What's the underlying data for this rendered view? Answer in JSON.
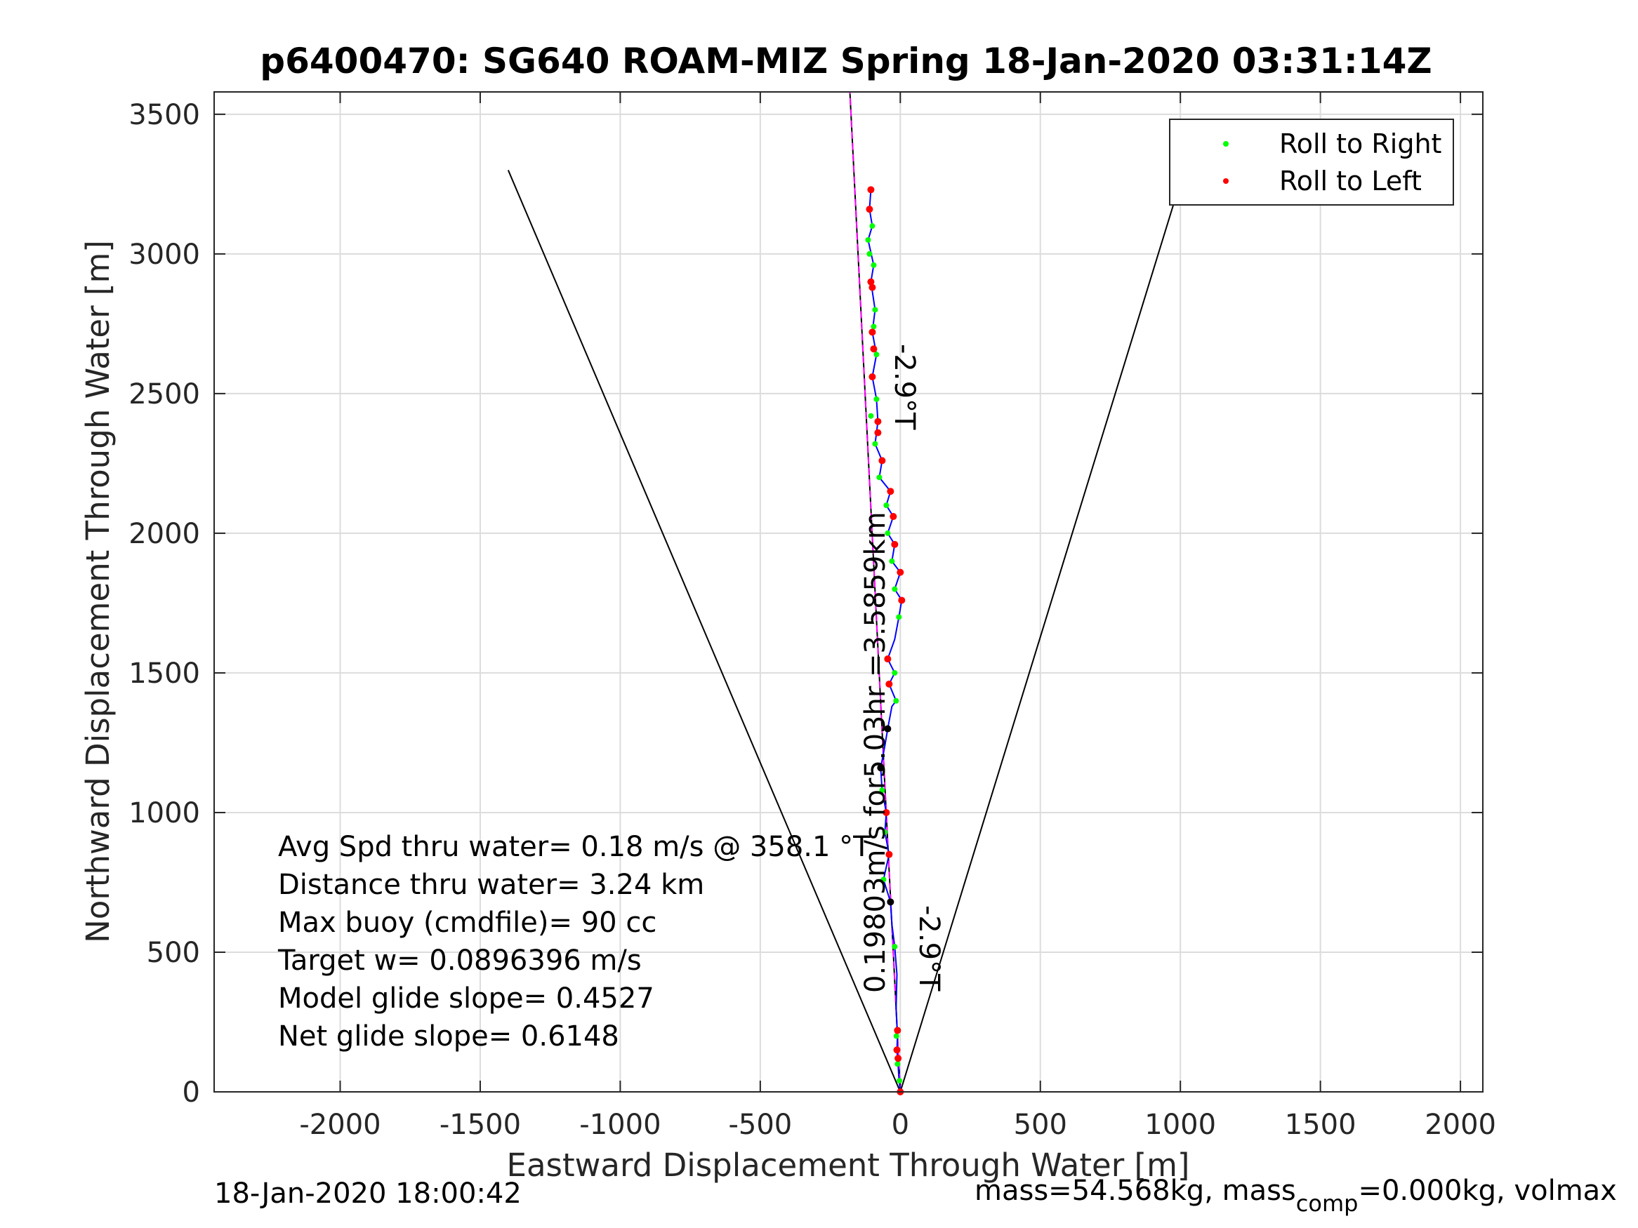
{
  "chart_data": {
    "type": "scatter",
    "title": "p6400470: SG640 ROAM-MIZ Spring 18-Jan-2020 03:31:14Z",
    "xlabel": "Eastward Displacement Through Water [m]",
    "ylabel": "Northward Displacement Through Water [m]",
    "xlim": [
      -2450,
      2080
    ],
    "ylim": [
      0,
      3580
    ],
    "xticks": [
      -2000,
      -1500,
      -1000,
      -500,
      0,
      500,
      1000,
      1500,
      2000
    ],
    "yticks": [
      0,
      500,
      1000,
      1500,
      2000,
      2500,
      3000,
      3500
    ],
    "grid": true,
    "legend_position": "top-right",
    "legend": [
      "Roll to Right",
      "Roll to Left"
    ],
    "colors": {
      "roll_right": "#00ff00",
      "roll_left": "#ff0000",
      "track": "#0000ff",
      "heading_line": "#ff00ff",
      "guide": "#000000"
    },
    "cone_lines": [
      {
        "name": "left",
        "points": [
          [
            0,
            0
          ],
          [
            -1400,
            3300
          ]
        ]
      },
      {
        "name": "right",
        "points": [
          [
            0,
            0
          ],
          [
            1050,
            3420
          ]
        ]
      }
    ],
    "course_line": [
      [
        0,
        0
      ],
      [
        -180,
        3580
      ]
    ],
    "heading_line": [
      [
        0,
        0
      ],
      [
        -180,
        3580
      ]
    ],
    "track": [
      [
        0,
        0
      ],
      [
        -5,
        50
      ],
      [
        -8,
        100
      ],
      [
        -12,
        150
      ],
      [
        -10,
        200
      ],
      [
        -15,
        300
      ],
      [
        -12,
        420
      ],
      [
        -20,
        520
      ],
      [
        -30,
        600
      ],
      [
        -35,
        680
      ],
      [
        -60,
        760
      ],
      [
        -40,
        850
      ],
      [
        -55,
        930
      ],
      [
        -50,
        1000
      ],
      [
        -65,
        1080
      ],
      [
        -70,
        1160
      ],
      [
        -55,
        1240
      ],
      [
        -45,
        1300
      ],
      [
        -30,
        1380
      ],
      [
        -15,
        1400
      ],
      [
        -40,
        1460
      ],
      [
        -20,
        1500
      ],
      [
        -45,
        1550
      ],
      [
        -20,
        1620
      ],
      [
        -5,
        1700
      ],
      [
        5,
        1760
      ],
      [
        -20,
        1800
      ],
      [
        0,
        1860
      ],
      [
        -30,
        1900
      ],
      [
        -20,
        1960
      ],
      [
        -45,
        2000
      ],
      [
        -25,
        2060
      ],
      [
        -50,
        2100
      ],
      [
        -35,
        2150
      ],
      [
        -75,
        2200
      ],
      [
        -65,
        2260
      ],
      [
        -90,
        2320
      ],
      [
        -80,
        2400
      ],
      [
        -85,
        2480
      ],
      [
        -100,
        2560
      ],
      [
        -85,
        2640
      ],
      [
        -100,
        2720
      ],
      [
        -90,
        2800
      ],
      [
        -105,
        2900
      ],
      [
        -95,
        2960
      ],
      [
        -115,
        3050
      ],
      [
        -100,
        3100
      ],
      [
        -110,
        3160
      ],
      [
        -105,
        3230
      ]
    ],
    "roll_right": [
      [
        -3,
        40
      ],
      [
        -10,
        100
      ],
      [
        -14,
        200
      ],
      [
        -20,
        520
      ],
      [
        -60,
        760
      ],
      [
        -55,
        930
      ],
      [
        -65,
        1080
      ],
      [
        -15,
        1400
      ],
      [
        -20,
        1500
      ],
      [
        -5,
        1700
      ],
      [
        -20,
        1800
      ],
      [
        -30,
        1900
      ],
      [
        -45,
        2000
      ],
      [
        -50,
        2100
      ],
      [
        -75,
        2200
      ],
      [
        -90,
        2320
      ],
      [
        -85,
        2480
      ],
      [
        -85,
        2640
      ],
      [
        -90,
        2800
      ],
      [
        -95,
        2960
      ],
      [
        -115,
        3050
      ],
      [
        -100,
        3100
      ],
      [
        -110,
        3000
      ],
      [
        -95,
        2740
      ],
      [
        -105,
        2420
      ]
    ],
    "roll_left": [
      [
        0,
        0
      ],
      [
        -8,
        120
      ],
      [
        -12,
        150
      ],
      [
        -10,
        220
      ],
      [
        -40,
        850
      ],
      [
        -50,
        1000
      ],
      [
        -70,
        1160
      ],
      [
        -40,
        1460
      ],
      [
        -45,
        1550
      ],
      [
        5,
        1760
      ],
      [
        0,
        1860
      ],
      [
        -20,
        1960
      ],
      [
        -25,
        2060
      ],
      [
        -35,
        2150
      ],
      [
        -65,
        2260
      ],
      [
        -80,
        2400
      ],
      [
        -100,
        2560
      ],
      [
        -100,
        2720
      ],
      [
        -105,
        2900
      ],
      [
        -110,
        3160
      ],
      [
        -105,
        3230
      ],
      [
        -100,
        2880
      ],
      [
        -95,
        2660
      ],
      [
        -80,
        2360
      ]
    ],
    "black_points": [
      [
        -35,
        680
      ],
      [
        -45,
        1300
      ],
      [
        -70,
        1160
      ]
    ],
    "stats": [
      "Avg Spd thru water=  0.18 m/s @ 358.1 °T",
      "Distance thru water=  3.24 km",
      "Max buoy (cmdfile)= 90 cc",
      "Target w= 0.0896396 m/s",
      "Model glide slope= 0.4527",
      "Net glide slope= 0.6148"
    ],
    "rotated_labels": {
      "speed": "0.19803m/s for5.03hr =3.5859km",
      "heading_upper": "-2.9°T",
      "heading_lower": "-2.9°T"
    },
    "footer": {
      "timestamp": "18-Jan-2020 18:00:42",
      "mass": "mass=54.568kg, mass",
      "mass_sub": "comp",
      "mass_tail": "=0.000kg, volmax"
    }
  }
}
